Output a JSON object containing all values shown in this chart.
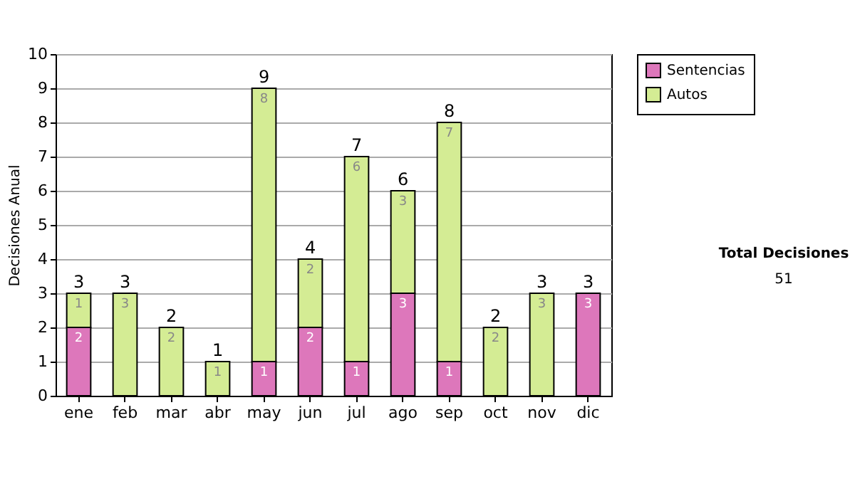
{
  "chart_data": {
    "type": "bar",
    "stacked": true,
    "ylabel": "Decisiones Anual",
    "categories": [
      "ene",
      "feb",
      "mar",
      "abr",
      "may",
      "jun",
      "jul",
      "ago",
      "sep",
      "oct",
      "nov",
      "dic"
    ],
    "series": [
      {
        "name": "Sentencias",
        "color": "#dd77bb",
        "values": [
          2,
          0,
          0,
          0,
          1,
          2,
          1,
          3,
          1,
          0,
          0,
          3
        ],
        "value_labels": [
          "2",
          null,
          null,
          null,
          "1",
          "2",
          "1",
          "3",
          "1",
          null,
          null,
          "3"
        ]
      },
      {
        "name": "Autos",
        "color": "#d4ec94",
        "values": [
          1,
          3,
          2,
          1,
          8,
          2,
          6,
          3,
          7,
          2,
          3,
          0
        ],
        "value_labels": [
          "1",
          "3",
          "2",
          "1",
          "8",
          "2",
          "6",
          "3",
          "7",
          "2",
          "3",
          null
        ]
      }
    ],
    "totals": [
      "3",
      "3",
      "2",
      "1",
      "9",
      "4",
      "7",
      "6",
      "8",
      "2",
      "3",
      "3"
    ],
    "ylim": [
      0,
      10
    ],
    "yticks": [
      0,
      1,
      2,
      3,
      4,
      5,
      6,
      7,
      8,
      9,
      10
    ],
    "grid": "y",
    "legend": "right",
    "annotations": [
      "Total Decisiones",
      "51"
    ]
  }
}
